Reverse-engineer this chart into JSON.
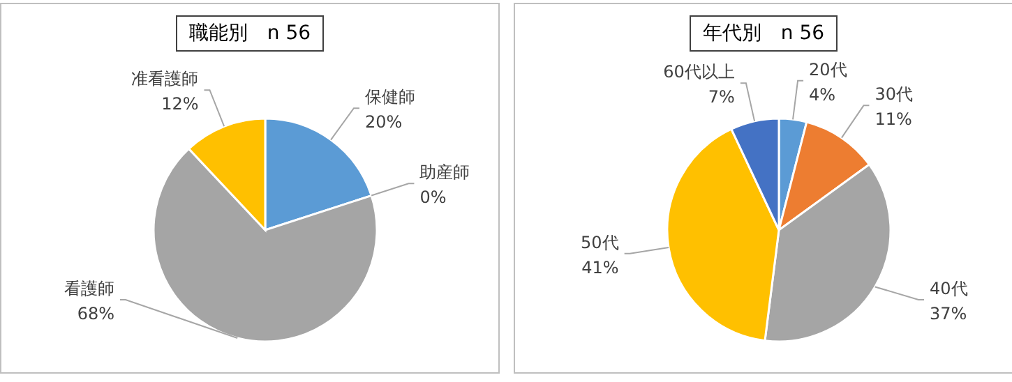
{
  "chart_data": [
    {
      "type": "pie",
      "title": "職能別　n 56",
      "categories": [
        "保健師",
        "助産師",
        "看護師",
        "准看護師"
      ],
      "values": [
        20,
        0,
        68,
        12
      ],
      "colors": [
        "#5b9bd5",
        "#ed7d31",
        "#a5a5a5",
        "#ffc000"
      ],
      "value_labels": [
        "20%",
        "0%",
        "68%",
        "12%"
      ]
    },
    {
      "type": "pie",
      "title": "年代別　n 56",
      "categories": [
        "20代",
        "30代",
        "40代",
        "50代",
        "60代以上"
      ],
      "values": [
        4,
        11,
        37,
        41,
        7
      ],
      "colors": [
        "#5b9bd5",
        "#ed7d31",
        "#a5a5a5",
        "#ffc000",
        "#4472c4"
      ],
      "value_labels": [
        "4%",
        "11%",
        "37%",
        "41%",
        "7%"
      ]
    }
  ]
}
